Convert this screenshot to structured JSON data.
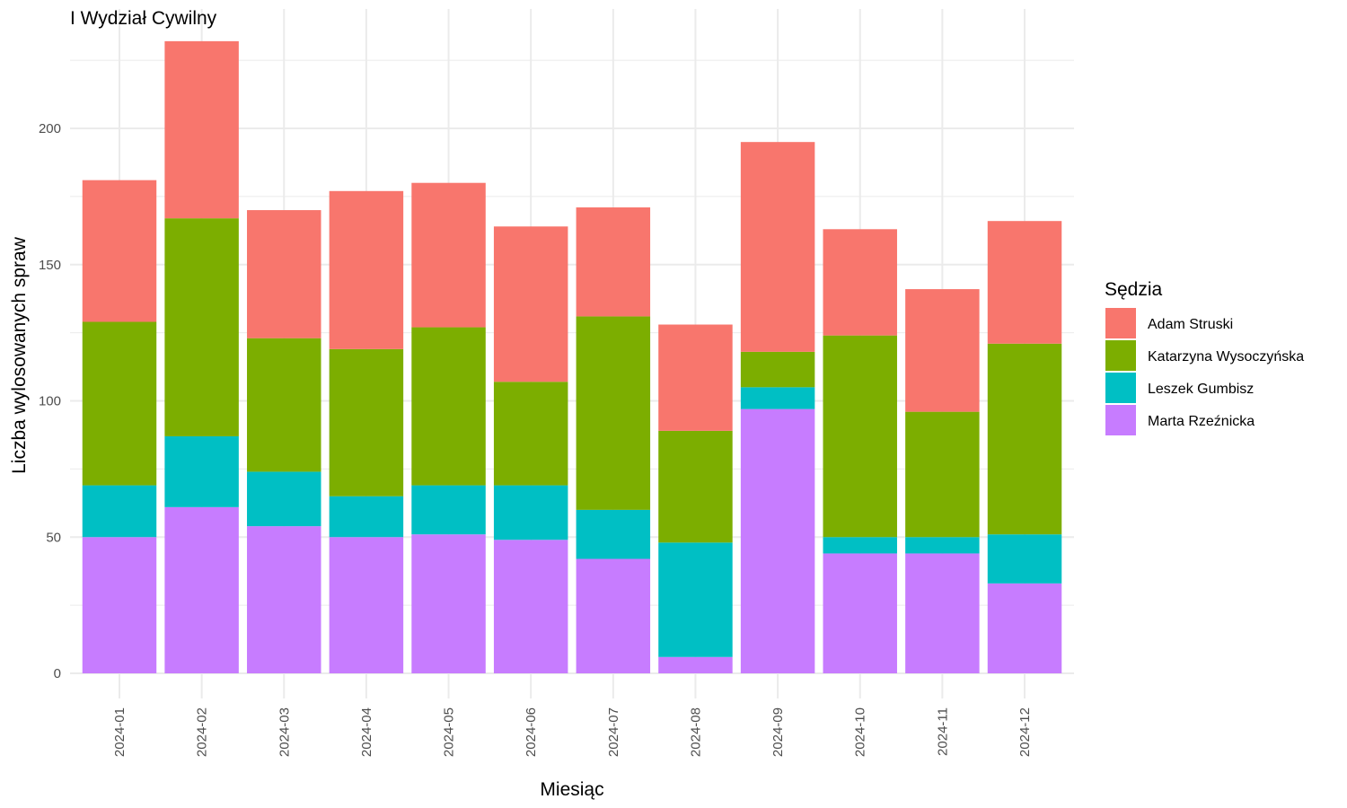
{
  "chart_data": {
    "type": "bar",
    "stacked": true,
    "title": "I Wydział Cywilny",
    "xlabel": "Miesiąc",
    "ylabel": "Liczba wylosowanych spraw",
    "ylim": [
      0,
      232
    ],
    "yticks": [
      0,
      50,
      100,
      150,
      200
    ],
    "grid": true,
    "legend_title": "Sędzia",
    "legend_position": "right",
    "categories": [
      "2024-01",
      "2024-02",
      "2024-03",
      "2024-04",
      "2024-05",
      "2024-06",
      "2024-07",
      "2024-08",
      "2024-09",
      "2024-10",
      "2024-11",
      "2024-12"
    ],
    "series": [
      {
        "name": "Adam Struski",
        "color": "#F8766D",
        "values": [
          52,
          65,
          47,
          58,
          53,
          57,
          40,
          39,
          77,
          39,
          45,
          45
        ]
      },
      {
        "name": "Katarzyna Wysoczyńska",
        "color": "#7CAE00",
        "values": [
          60,
          80,
          49,
          54,
          58,
          38,
          71,
          41,
          13,
          74,
          46,
          70
        ]
      },
      {
        "name": "Leszek Gumbisz",
        "color": "#00BFC4",
        "values": [
          19,
          26,
          20,
          15,
          18,
          20,
          18,
          42,
          8,
          6,
          6,
          18
        ]
      },
      {
        "name": "Marta Rzeźnicka",
        "color": "#C77CFF",
        "values": [
          50,
          61,
          54,
          50,
          51,
          49,
          42,
          6,
          97,
          44,
          44,
          33
        ]
      }
    ],
    "stack_order_bottom_to_top": [
      "Marta Rzeźnicka",
      "Leszek Gumbisz",
      "Katarzyna Wysoczyńska",
      "Adam Struski"
    ]
  }
}
